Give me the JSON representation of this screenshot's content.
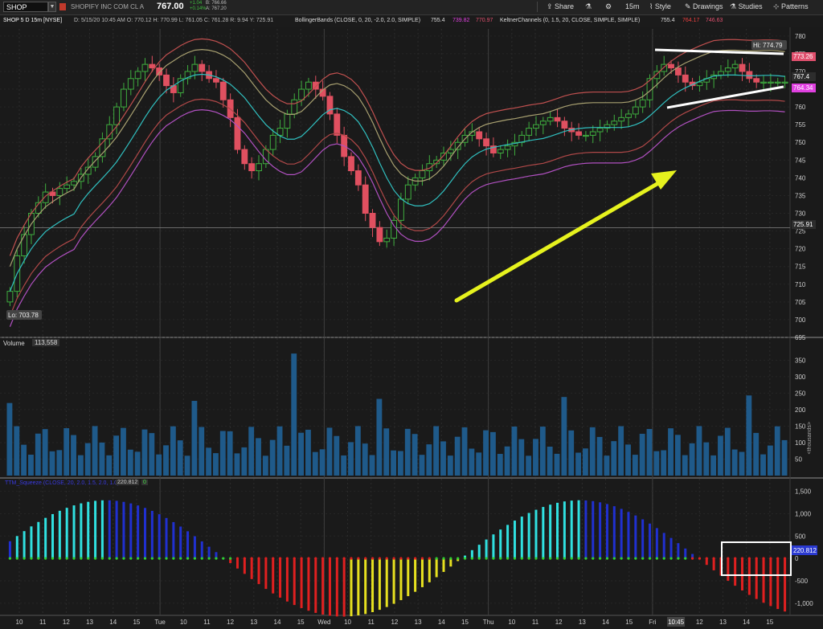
{
  "header": {
    "symbol": "SHOP",
    "chart_label": "SHOP 5 D 15m [NYSE]",
    "company": "SHOPIFY INC COM CL A",
    "last": "767.00",
    "change_abs": "+1.04",
    "change_pct": "+0.14%",
    "bid": "B: 766.66",
    "ask": "A: 767.20",
    "info": "D: 5/15/20 10:45 AM   O: 770.12   H: 770.99   L: 761.05   C: 761.28   R: 9.94   Y: 725.91",
    "bb_label": "BollingerBands (CLOSE, 0, 20, -2.0, 2.0, SIMPLE)",
    "bb_values": [
      "755.4",
      "739.82",
      "770.97"
    ],
    "kc_label": "KeltnerChannels (0, 1.5, 20, CLOSE, SIMPLE, SIMPLE)",
    "kc_values": [
      "755.4",
      "764.17",
      "746.63"
    ]
  },
  "toolbar": {
    "share": "Share",
    "settings_icon": "gear-icon",
    "timeframe": "15m",
    "style": "Style",
    "drawings": "Drawings",
    "studies": "Studies",
    "patterns": "Patterns"
  },
  "price_axis": {
    "ticks": [
      "780",
      "775",
      "770",
      "765",
      "760",
      "755",
      "750",
      "745",
      "740",
      "735",
      "730",
      "725",
      "720",
      "715",
      "710",
      "705",
      "700",
      "695"
    ],
    "hi_label": "Hi: 774.79",
    "lo_label": "Lo: 703.78",
    "tags": [
      {
        "text": "773.26",
        "color": "#e0506e"
      },
      {
        "text": "767.4",
        "color": "#2d2d2d"
      },
      {
        "text": "764.34",
        "color": "#e040e0"
      },
      {
        "text": "725.91",
        "color": "#2d2d2d"
      }
    ]
  },
  "volume": {
    "label": "Volume",
    "value": "113,558",
    "ticks": [
      "350",
      "300",
      "250",
      "200",
      "150",
      "100",
      "50"
    ],
    "axis_unit": "<thousands>"
  },
  "squeeze": {
    "label": "TTM_Squeeze (CLOSE, 20, 2.0, 1.5, 2.0, 1.0)",
    "value": "220.812",
    "value_small": "0",
    "ticks": [
      "1,500",
      "1,000",
      "500",
      "0",
      "-500",
      "-1,000"
    ],
    "current_tag": "220.812"
  },
  "time_axis": {
    "labels": [
      "10",
      "11",
      "12",
      "13",
      "14",
      "15",
      "Tue",
      "10",
      "11",
      "12",
      "13",
      "14",
      "15",
      "Wed",
      "10",
      "11",
      "12",
      "13",
      "14",
      "15",
      "Thu",
      "10",
      "11",
      "12",
      "13",
      "14",
      "15",
      "Fri",
      "10:45",
      "12",
      "13",
      "14",
      "15"
    ]
  },
  "chart_data": {
    "type": "candlestick",
    "title": "SHOP 5 D 15m [NYSE]",
    "ylim": [
      695,
      782
    ],
    "note_price_levels": [
      "Hi 774.79",
      "Lo 703.78",
      "Prior close 725.91"
    ],
    "series": [
      {
        "name": "BollingerBands (CLOSE, 0, 20, -2.0, 2.0, SIMPLE)",
        "values": [
          755.4,
          739.82,
          770.97
        ]
      },
      {
        "name": "KeltnerChannels (0, 1.5, 20, CLOSE, SIMPLE, SIMPLE)",
        "values": [
          755.4,
          764.17,
          746.63
        ]
      }
    ],
    "closes": [
      708,
      718,
      724,
      730,
      733,
      736,
      735,
      737,
      738,
      739,
      741,
      743,
      746,
      751,
      755,
      760,
      765,
      768,
      770,
      772,
      771,
      769,
      766,
      764,
      768,
      770,
      772,
      770,
      768,
      767,
      762,
      757,
      748,
      744,
      742,
      744,
      748,
      752,
      754,
      758,
      762,
      765,
      767,
      765,
      763,
      758,
      752,
      746,
      742,
      738,
      730,
      726,
      722,
      723,
      728,
      734,
      738,
      740,
      742,
      744,
      745,
      747,
      748,
      750,
      752,
      753,
      751,
      749,
      747,
      748,
      749,
      750,
      752,
      754,
      755,
      756,
      757,
      756,
      754,
      753,
      752,
      752,
      753,
      754,
      755,
      756,
      757,
      758,
      760,
      762,
      768,
      770,
      772,
      771,
      769,
      767,
      766,
      767,
      768,
      769,
      770,
      771,
      772,
      770,
      768,
      767,
      767,
      767,
      767,
      767
    ]
  }
}
